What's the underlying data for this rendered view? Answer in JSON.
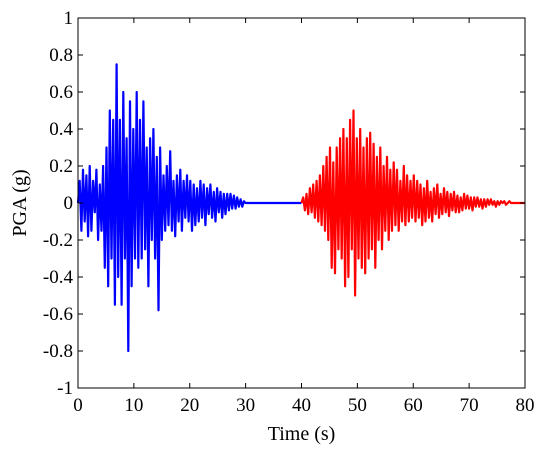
{
  "chart_data": {
    "type": "line",
    "title": "",
    "xlabel": "Time (s)",
    "ylabel": "PGA (g)",
    "xlim": [
      0,
      80
    ],
    "ylim": [
      -1,
      1
    ],
    "xticks": [
      0,
      10,
      20,
      30,
      40,
      50,
      60,
      70,
      80
    ],
    "yticks": [
      -1,
      -0.8,
      -0.6,
      -0.4,
      -0.2,
      0,
      0.2,
      0.4,
      0.6,
      0.8,
      1
    ],
    "xtick_labels": [
      "0",
      "10",
      "20",
      "30",
      "40",
      "50",
      "60",
      "70",
      "80"
    ],
    "ytick_labels": [
      "-1",
      "-0.8",
      "-0.6",
      "-0.4",
      "-0.2",
      "0",
      "0.2",
      "0.4",
      "0.6",
      "0.8",
      "1"
    ],
    "grid": false,
    "legend": "none",
    "series": [
      {
        "color": "#0000ff",
        "x": [
          0.0,
          0.3,
          0.6,
          0.9,
          1.2,
          1.5,
          1.8,
          2.1,
          2.4,
          2.7,
          3.0,
          3.3,
          3.6,
          3.9,
          4.2,
          4.5,
          4.8,
          5.1,
          5.4,
          5.7,
          6.0,
          6.3,
          6.6,
          6.9,
          7.2,
          7.5,
          7.8,
          8.1,
          8.4,
          8.7,
          9.0,
          9.3,
          9.6,
          9.9,
          10.2,
          10.5,
          10.8,
          11.1,
          11.4,
          11.7,
          12.0,
          12.3,
          12.6,
          12.9,
          13.2,
          13.5,
          13.8,
          14.1,
          14.4,
          14.7,
          15.0,
          15.3,
          15.6,
          15.9,
          16.2,
          16.5,
          16.8,
          17.1,
          17.4,
          17.7,
          18.0,
          18.3,
          18.6,
          18.9,
          19.2,
          19.5,
          19.8,
          20.1,
          20.4,
          20.7,
          21.0,
          21.3,
          21.6,
          21.9,
          22.2,
          22.5,
          22.8,
          23.1,
          23.4,
          23.7,
          24.0,
          24.3,
          24.6,
          24.9,
          25.2,
          25.5,
          25.8,
          26.1,
          26.4,
          26.7,
          27.0,
          27.3,
          27.6,
          27.9,
          28.2,
          28.5,
          28.8,
          29.1,
          29.4,
          29.7,
          30.0,
          32.0,
          34.0,
          36.0,
          38.0,
          40.0
        ],
        "y": [
          0.0,
          0.12,
          -0.15,
          0.18,
          -0.1,
          0.15,
          -0.18,
          0.2,
          -0.15,
          0.12,
          -0.05,
          0.18,
          -0.2,
          0.1,
          -0.15,
          0.2,
          -0.35,
          0.3,
          -0.45,
          0.5,
          -0.3,
          0.45,
          -0.55,
          0.75,
          -0.4,
          0.45,
          -0.55,
          0.6,
          -0.3,
          0.35,
          -0.8,
          0.55,
          -0.45,
          0.4,
          -0.3,
          0.6,
          -0.35,
          0.45,
          -0.3,
          0.55,
          -0.25,
          0.3,
          -0.45,
          0.35,
          -0.2,
          0.4,
          -0.3,
          0.25,
          -0.58,
          0.3,
          -0.2,
          0.15,
          -0.15,
          0.2,
          -0.12,
          0.28,
          -0.15,
          0.12,
          -0.18,
          0.15,
          -0.1,
          0.18,
          -0.15,
          0.12,
          -0.08,
          0.15,
          -0.1,
          0.12,
          -0.15,
          0.1,
          -0.12,
          0.08,
          -0.1,
          0.12,
          -0.08,
          0.1,
          -0.12,
          0.08,
          -0.06,
          0.1,
          -0.08,
          0.06,
          -0.1,
          0.08,
          -0.05,
          0.06,
          -0.08,
          0.05,
          -0.06,
          0.05,
          -0.04,
          0.05,
          -0.03,
          0.04,
          -0.03,
          0.03,
          -0.02,
          0.02,
          -0.02,
          0.01,
          0.0,
          0.0,
          0.0,
          0.0,
          0.0,
          0.0
        ]
      },
      {
        "color": "#ff0000",
        "x": [
          40.0,
          40.3,
          40.6,
          40.9,
          41.2,
          41.5,
          41.8,
          42.1,
          42.4,
          42.7,
          43.0,
          43.3,
          43.6,
          43.9,
          44.2,
          44.5,
          44.8,
          45.1,
          45.4,
          45.7,
          46.0,
          46.3,
          46.6,
          46.9,
          47.2,
          47.5,
          47.8,
          48.1,
          48.4,
          48.7,
          49.0,
          49.3,
          49.6,
          49.9,
          50.2,
          50.5,
          50.8,
          51.1,
          51.4,
          51.7,
          52.0,
          52.3,
          52.6,
          52.9,
          53.2,
          53.5,
          53.8,
          54.1,
          54.4,
          54.7,
          55.0,
          55.3,
          55.6,
          55.9,
          56.2,
          56.5,
          56.8,
          57.1,
          57.4,
          57.7,
          58.0,
          58.3,
          58.6,
          58.9,
          59.2,
          59.5,
          59.8,
          60.1,
          60.4,
          60.7,
          61.0,
          61.3,
          61.6,
          61.9,
          62.2,
          62.5,
          62.8,
          63.1,
          63.4,
          63.7,
          64.0,
          64.3,
          64.6,
          64.9,
          65.2,
          65.5,
          65.8,
          66.1,
          66.4,
          66.7,
          67.0,
          67.3,
          67.6,
          67.9,
          68.2,
          68.5,
          68.8,
          69.1,
          69.4,
          69.7,
          70.0,
          70.3,
          70.6,
          70.9,
          71.2,
          71.5,
          71.8,
          72.1,
          72.4,
          72.7,
          73.0,
          73.3,
          73.6,
          73.9,
          74.2,
          74.5,
          74.8,
          75.1,
          75.4,
          75.7,
          76.0,
          76.3,
          76.6,
          76.9,
          77.2,
          77.5,
          77.8,
          78.1,
          78.4,
          78.7,
          79.0,
          79.3,
          79.6,
          79.9
        ],
        "y": [
          0.0,
          0.03,
          -0.04,
          0.05,
          -0.06,
          0.08,
          -0.05,
          0.1,
          -0.08,
          0.12,
          -0.1,
          0.15,
          -0.12,
          0.2,
          -0.15,
          0.25,
          -0.2,
          0.3,
          -0.35,
          0.22,
          -0.38,
          0.3,
          -0.25,
          0.35,
          -0.3,
          0.4,
          -0.45,
          0.35,
          -0.4,
          0.45,
          -0.25,
          0.5,
          -0.5,
          0.35,
          -0.3,
          0.4,
          -0.35,
          0.3,
          -0.38,
          0.35,
          -0.3,
          0.38,
          -0.25,
          0.32,
          -0.35,
          0.25,
          -0.2,
          0.3,
          -0.25,
          0.2,
          -0.15,
          0.25,
          -0.2,
          0.18,
          -0.15,
          0.22,
          -0.12,
          0.18,
          -0.15,
          0.12,
          -0.1,
          0.2,
          -0.12,
          0.15,
          -0.1,
          0.12,
          -0.08,
          0.15,
          -0.1,
          0.12,
          -0.08,
          0.1,
          -0.12,
          0.08,
          -0.1,
          0.12,
          -0.08,
          0.06,
          -0.1,
          0.08,
          -0.06,
          0.1,
          -0.08,
          0.05,
          -0.06,
          0.08,
          -0.05,
          0.06,
          -0.07,
          0.05,
          -0.04,
          0.06,
          -0.05,
          0.04,
          -0.05,
          0.03,
          -0.04,
          0.05,
          -0.03,
          0.04,
          -0.03,
          0.03,
          -0.04,
          0.03,
          -0.02,
          0.03,
          -0.02,
          0.02,
          -0.03,
          0.02,
          -0.02,
          0.02,
          -0.01,
          0.02,
          -0.01,
          0.01,
          -0.02,
          0.01,
          -0.01,
          0.01,
          0.0,
          0.01,
          -0.01,
          0.0,
          0.01,
          0.0,
          0.0,
          0.0,
          0.0,
          0.0,
          0.0,
          0.0,
          0.0,
          0.0
        ]
      }
    ]
  }
}
